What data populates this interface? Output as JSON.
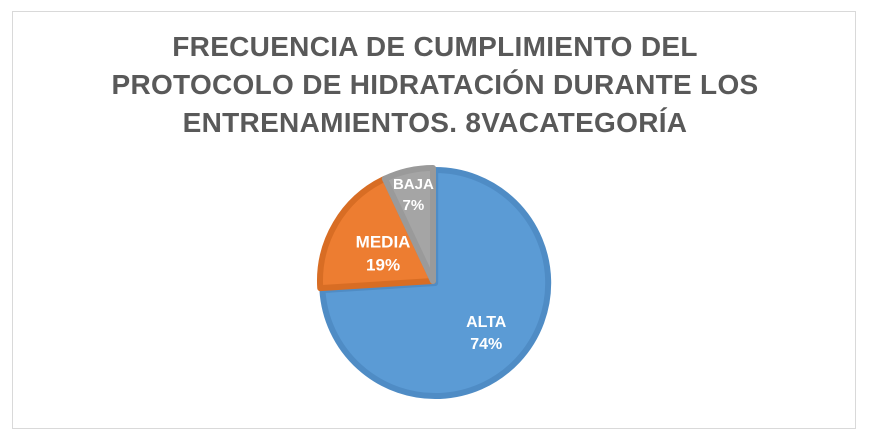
{
  "title_lines": [
    "FRECUENCIA DE CUMPLIMIENTO DEL",
    "PROTOCOLO DE HIDRATACIÓN DURANTE LOS",
    "ENTRENAMIENTOS. 8VACATEGORÍA"
  ],
  "chart_data": {
    "type": "pie",
    "title": "FRECUENCIA DE CUMPLIMIENTO DEL PROTOCOLO DE HIDRATACIÓN DURANTE LOS ENTRENAMIENTOS. 8VACATEGORÍA",
    "categories": [
      "ALTA",
      "MEDIA",
      "BAJA"
    ],
    "values": [
      74,
      19,
      7
    ],
    "value_labels": [
      "74%",
      "19%",
      "7%"
    ],
    "colors": [
      "#5b9bd5",
      "#ed7d31",
      "#a5a5a5"
    ],
    "legend": false
  }
}
